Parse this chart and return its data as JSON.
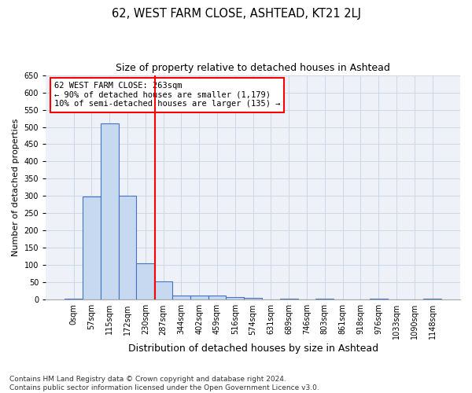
{
  "title": "62, WEST FARM CLOSE, ASHTEAD, KT21 2LJ",
  "subtitle": "Size of property relative to detached houses in Ashtead",
  "xlabel": "Distribution of detached houses by size in Ashtead",
  "ylabel": "Number of detached properties",
  "bin_labels": [
    "0sqm",
    "57sqm",
    "115sqm",
    "172sqm",
    "230sqm",
    "287sqm",
    "344sqm",
    "402sqm",
    "459sqm",
    "516sqm",
    "574sqm",
    "631sqm",
    "689sqm",
    "746sqm",
    "803sqm",
    "861sqm",
    "918sqm",
    "976sqm",
    "1033sqm",
    "1090sqm",
    "1148sqm"
  ],
  "bar_heights": [
    3,
    298,
    510,
    301,
    106,
    53,
    13,
    13,
    12,
    8,
    5,
    0,
    4,
    0,
    3,
    0,
    0,
    3,
    0,
    0,
    3
  ],
  "bar_color": "#c6d9f0",
  "bar_edge_color": "#4472c4",
  "vline_x": 4.55,
  "vline_color": "#ff0000",
  "annotation_line1": "62 WEST FARM CLOSE: 263sqm",
  "annotation_line2": "← 90% of detached houses are smaller (1,179)",
  "annotation_line3": "10% of semi-detached houses are larger (135) →",
  "annotation_box_color": "#ffffff",
  "annotation_box_edge_color": "#ff0000",
  "grid_color": "#d0d8e8",
  "background_color": "#eef2f8",
  "ylim": [
    0,
    650
  ],
  "yticks": [
    0,
    50,
    100,
    150,
    200,
    250,
    300,
    350,
    400,
    450,
    500,
    550,
    600,
    650
  ],
  "footnote": "Contains HM Land Registry data © Crown copyright and database right 2024.\nContains public sector information licensed under the Open Government Licence v3.0.",
  "title_fontsize": 10.5,
  "subtitle_fontsize": 9,
  "xlabel_fontsize": 9,
  "ylabel_fontsize": 8,
  "tick_fontsize": 7,
  "annotation_fontsize": 7.5,
  "footnote_fontsize": 6.5
}
